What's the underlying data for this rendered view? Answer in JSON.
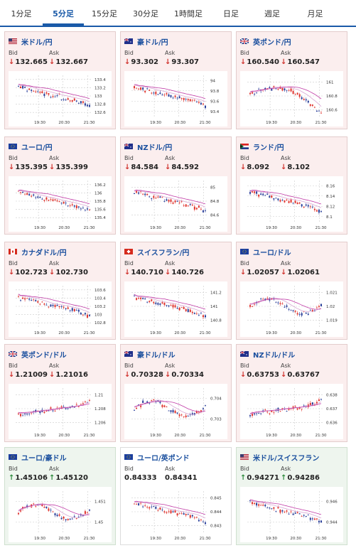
{
  "tabs": [
    "1分足",
    "5分足",
    "15分足",
    "30分足",
    "1時間足",
    "日足",
    "週足",
    "月足"
  ],
  "active_tab": 1,
  "labels": {
    "bid": "Bid",
    "ask": "Ask"
  },
  "x_ticks": [
    "19:30",
    "20:30",
    "21:30"
  ],
  "cards": [
    {
      "title": "米ドル/円",
      "flag": "us",
      "trend": "down",
      "bid": "132.665",
      "ask": "132.667",
      "y_ticks": [
        "133.4",
        "133.2",
        "133",
        "132.8",
        "132.6"
      ],
      "chart_data": {
        "type": "candlestick",
        "y_range": [
          132.5,
          133.45
        ],
        "shape": "fall"
      }
    },
    {
      "title": "豪ドル/円",
      "flag": "au",
      "trend": "down",
      "bid": "93.302",
      "ask": "93.307",
      "y_ticks": [
        "94",
        "93.8",
        "93.6",
        "93.4"
      ],
      "chart_data": {
        "type": "candlestick",
        "y_range": [
          93.25,
          94.05
        ],
        "shape": "fall"
      }
    },
    {
      "title": "英ポンド/円",
      "flag": "gb",
      "trend": "down",
      "bid": "160.540",
      "ask": "160.547",
      "y_ticks": [
        "161",
        "160.8",
        "160.6"
      ],
      "chart_data": {
        "type": "candlestick",
        "y_range": [
          160.45,
          161.15
        ],
        "shape": "hump"
      }
    },
    {
      "title": "ユーロ/円",
      "flag": "eu",
      "trend": "down",
      "bid": "135.395",
      "ask": "135.399",
      "y_ticks": [
        "136.2",
        "136",
        "135.8",
        "135.6",
        "135.4"
      ],
      "chart_data": {
        "type": "candlestick",
        "y_range": [
          135.3,
          136.25
        ],
        "shape": "fall"
      }
    },
    {
      "title": "NZドル/円",
      "flag": "nz",
      "trend": "down",
      "bid": "84.584",
      "ask": "84.592",
      "y_ticks": [
        "85",
        "84.8",
        "84.6"
      ],
      "chart_data": {
        "type": "candlestick",
        "y_range": [
          84.5,
          85.1
        ],
        "shape": "fall"
      }
    },
    {
      "title": "ランド/円",
      "flag": "za",
      "trend": "down",
      "bid": "8.092",
      "ask": "8.102",
      "y_ticks": [
        "8.16",
        "8.14",
        "8.12",
        "8.1"
      ],
      "chart_data": {
        "type": "candlestick",
        "y_range": [
          8.085,
          8.165
        ],
        "shape": "fall"
      }
    },
    {
      "title": "カナダドル/円",
      "flag": "ca",
      "trend": "down",
      "bid": "102.723",
      "ask": "102.730",
      "y_ticks": [
        "103.6",
        "103.4",
        "103.2",
        "103",
        "102.8"
      ],
      "chart_data": {
        "type": "candlestick",
        "y_range": [
          102.7,
          103.65
        ],
        "shape": "fall"
      }
    },
    {
      "title": "スイスフラン/円",
      "flag": "ch",
      "trend": "down",
      "bid": "140.710",
      "ask": "140.726",
      "y_ticks": [
        "141.2",
        "141",
        "140.8"
      ],
      "chart_data": {
        "type": "candlestick",
        "y_range": [
          140.65,
          141.3
        ],
        "shape": "fall"
      }
    },
    {
      "title": "ユーロ/ドル",
      "flag": "eu",
      "trend": "down",
      "bid": "1.02057",
      "ask": "1.02061",
      "y_ticks": [
        "1.021",
        "1.02",
        "1.019"
      ],
      "chart_data": {
        "type": "candlestick",
        "y_range": [
          1.0185,
          1.0215
        ],
        "shape": "wave"
      }
    },
    {
      "title": "英ポンド/ドル",
      "flag": "gb",
      "trend": "down",
      "bid": "1.21009",
      "ask": "1.21016",
      "y_ticks": [
        "1.21",
        "1.208",
        "1.206"
      ],
      "chart_data": {
        "type": "candlestick",
        "y_range": [
          1.2055,
          1.2115
        ],
        "shape": "rise"
      }
    },
    {
      "title": "豪ドル/ドル",
      "flag": "au",
      "trend": "down",
      "bid": "0.70328",
      "ask": "0.70334",
      "y_ticks": [
        "0.704",
        "0.703"
      ],
      "chart_data": {
        "type": "candlestick",
        "y_range": [
          0.7024,
          0.7046
        ],
        "shape": "wave"
      }
    },
    {
      "title": "NZドル/ドル",
      "flag": "nz",
      "trend": "down",
      "bid": "0.63753",
      "ask": "0.63767",
      "y_ticks": [
        "0.638",
        "0.637",
        "0.636"
      ],
      "chart_data": {
        "type": "candlestick",
        "y_range": [
          0.6355,
          0.6385
        ],
        "shape": "rise"
      }
    },
    {
      "title": "ユーロ/豪ドル",
      "flag": "eu",
      "trend": "up",
      "bid": "1.45106",
      "ask": "1.45120",
      "y_ticks": [
        "1.451",
        "1.45"
      ],
      "chart_data": {
        "type": "candlestick",
        "y_range": [
          1.4495,
          1.4518
        ],
        "shape": "wave"
      }
    },
    {
      "title": "ユーロ/英ポンド",
      "flag": "eu",
      "trend": "flat",
      "bid": "0.84333",
      "ask": "0.84341",
      "y_ticks": [
        "0.845",
        "0.844",
        "0.843"
      ],
      "chart_data": {
        "type": "candlestick",
        "y_range": [
          0.8426,
          0.8458
        ],
        "shape": "fall"
      }
    },
    {
      "title": "米ドル/スイスフラン",
      "flag": "us-ch",
      "trend": "up",
      "bid": "0.94271",
      "ask": "0.94286",
      "y_ticks": [
        "0.946",
        "0.944"
      ],
      "chart_data": {
        "type": "candlestick",
        "y_range": [
          0.9425,
          0.9468
        ],
        "shape": "fall"
      }
    }
  ],
  "colors": {
    "down": "#d0302c",
    "up": "#2e8b3d",
    "accent": "#1a5aa8",
    "candle_up": "#e0352f",
    "candle_down": "#2a3f9a",
    "ma1": "#c03aa6",
    "ma2": "#d9a7d4"
  }
}
